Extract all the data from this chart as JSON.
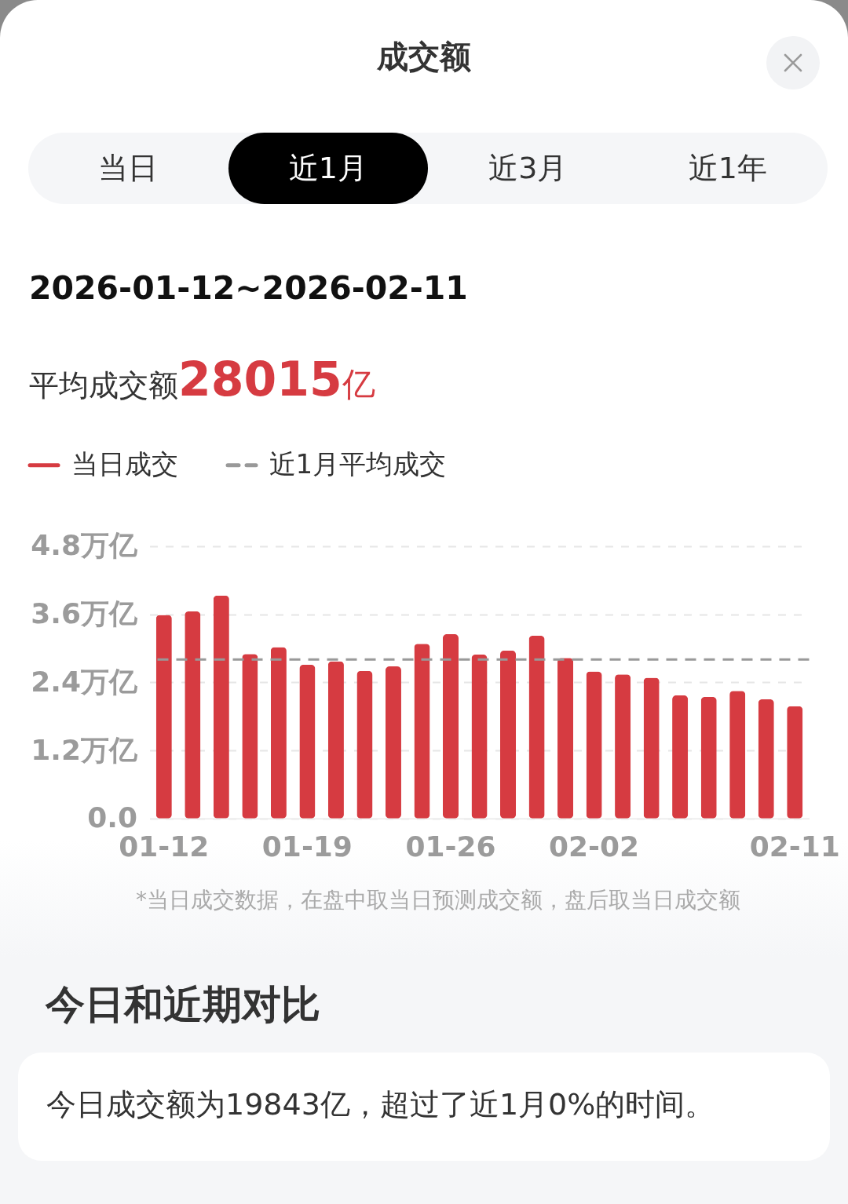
{
  "chart_data": {
    "type": "bar",
    "title": "成交额",
    "subtitle": "2026-01-12~2026-02-11",
    "categories": [
      "01-12",
      null,
      null,
      null,
      null,
      "01-19",
      null,
      null,
      null,
      null,
      "01-26",
      null,
      null,
      null,
      null,
      "02-02",
      null,
      null,
      null,
      null,
      null,
      null,
      "02-11"
    ],
    "series": [
      {
        "name": "当日成交",
        "color": "#d63b41",
        "values": [
          3.59,
          3.65,
          3.93,
          2.9,
          3.02,
          2.71,
          2.77,
          2.6,
          2.68,
          3.08,
          3.25,
          2.89,
          2.96,
          3.22,
          2.83,
          2.59,
          2.54,
          2.48,
          2.17,
          2.14,
          2.25,
          2.1,
          1.98
        ]
      }
    ],
    "ylim": [
      0,
      4.8
    ],
    "yticks": [
      {
        "value": 0,
        "label": "0.0"
      },
      {
        "value": 1.2,
        "label": "1.2万亿"
      },
      {
        "value": 2.4,
        "label": "2.4万亿"
      },
      {
        "value": 3.6,
        "label": "3.6万亿"
      },
      {
        "value": 4.8,
        "label": "4.8万亿"
      }
    ],
    "ref_lines": [
      {
        "axis": "y",
        "value": 2.8015,
        "label": "近1月平均成交",
        "color": "#999999",
        "line_style": "dashed"
      }
    ],
    "grid": "y",
    "legend": "top left",
    "annotations": [
      "当日",
      "近1月",
      "近3月",
      "近1年",
      "平均成交额",
      "28015",
      "亿",
      "*当日成交数据，在盘中取当日预测成交额，盘后取当日成交额",
      "今日和近期对比",
      "今日成交额为19843亿，超过了近1月0%的时间。"
    ]
  }
}
